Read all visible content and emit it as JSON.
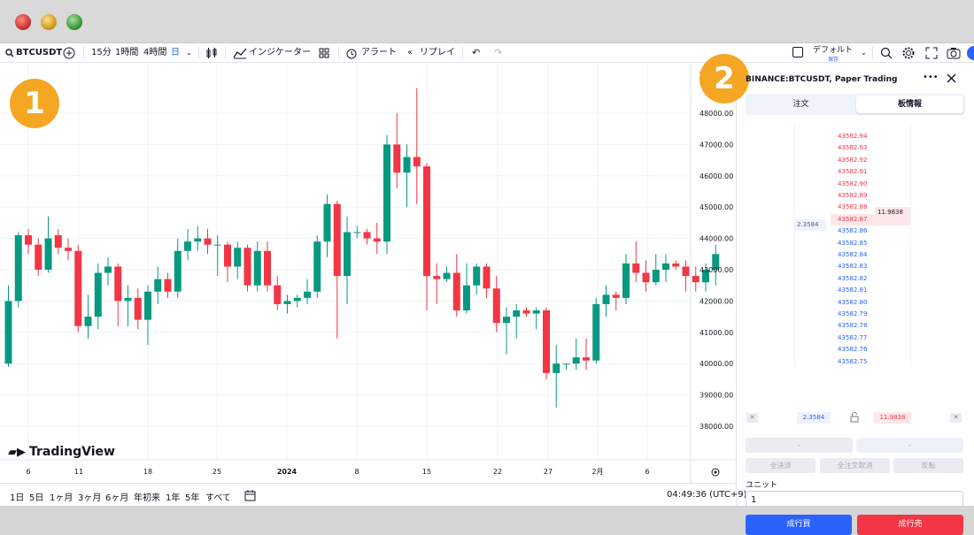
{
  "badges": {
    "one": "1",
    "two": "2"
  },
  "toolbar": {
    "symbol": "BTCUSDT",
    "intervals": [
      "15分",
      "1時間",
      "4時間",
      "日"
    ],
    "indicators": "インジケーター",
    "alert": "アラート",
    "replay": "リプレイ",
    "layout": "デフォルト",
    "layout_sub": "保存"
  },
  "chart": {
    "currency": "USDT",
    "logo": "TradingView",
    "y_ticks": [
      "48000.00",
      "47000.00",
      "46000.00",
      "45000.00",
      "44000.00",
      "43000.00",
      "42000.00",
      "41000.00",
      "40000.00",
      "39000.00",
      "38000.00"
    ],
    "x_labels": [
      "6",
      "11",
      "18",
      "25",
      "2024",
      "8",
      "15",
      "22",
      "27",
      "2月",
      "6"
    ]
  },
  "chart_data": {
    "type": "candlestick",
    "series": "BINANCE:BTCUSDT daily",
    "ylim": [
      37600,
      49800
    ],
    "y_tick_labels": [
      "48000.00",
      "47000.00",
      "46000.00",
      "45000.00",
      "44000.00",
      "43000.00",
      "42000.00",
      "41000.00",
      "40000.00",
      "39000.00",
      "38000.00"
    ],
    "x_tick_labels": [
      "6",
      "11",
      "18",
      "25",
      "2024",
      "8",
      "15",
      "22",
      "27",
      "2月",
      "6"
    ],
    "up_color": "#089981",
    "down_color": "#f23645",
    "candles": [
      [
        40000,
        42000,
        39900,
        42500
      ],
      [
        42000,
        44100,
        41800,
        44200
      ],
      [
        44100,
        43800,
        43500,
        44300
      ],
      [
        43800,
        43000,
        42800,
        44000
      ],
      [
        43000,
        44000,
        42900,
        44700
      ],
      [
        44100,
        43700,
        43500,
        44300
      ],
      [
        43700,
        43600,
        43300,
        44000
      ],
      [
        43600,
        41200,
        41000,
        43800
      ],
      [
        41200,
        41500,
        40800,
        42200
      ],
      [
        41500,
        42900,
        41100,
        43200
      ],
      [
        42900,
        43100,
        42500,
        43400
      ],
      [
        43100,
        42000,
        41200,
        43200
      ],
      [
        42000,
        42100,
        41200,
        42500
      ],
      [
        42100,
        41400,
        41100,
        42400
      ],
      [
        41400,
        42300,
        40600,
        42500
      ],
      [
        42300,
        42700,
        41900,
        43100
      ],
      [
        42700,
        42300,
        42100,
        42900
      ],
      [
        42300,
        43600,
        42100,
        44000
      ],
      [
        43600,
        43900,
        43300,
        44300
      ],
      [
        43900,
        44000,
        43600,
        44400
      ],
      [
        44000,
        43800,
        43500,
        44300
      ],
      [
        43800,
        43800,
        42800,
        44100
      ],
      [
        43800,
        43100,
        42600,
        43900
      ],
      [
        43100,
        43700,
        42700,
        43900
      ],
      [
        43700,
        42500,
        42300,
        43800
      ],
      [
        42500,
        43600,
        42300,
        43900
      ],
      [
        43600,
        42500,
        42300,
        43900
      ],
      [
        42500,
        41900,
        41700,
        42800
      ],
      [
        41900,
        42000,
        41600,
        42200
      ],
      [
        42000,
        42100,
        41800,
        42200
      ],
      [
        42100,
        42300,
        41900,
        42700
      ],
      [
        42300,
        43900,
        42100,
        44100
      ],
      [
        43900,
        45100,
        43400,
        45400
      ],
      [
        45100,
        42800,
        40800,
        45200
      ],
      [
        42800,
        44200,
        41900,
        44700
      ],
      [
        44200,
        44200,
        44000,
        44400
      ],
      [
        44200,
        44000,
        43800,
        44300
      ],
      [
        44000,
        43900,
        43500,
        44500
      ],
      [
        43900,
        47000,
        43500,
        47300
      ],
      [
        47000,
        46100,
        45600,
        48000
      ],
      [
        46100,
        46600,
        45000,
        47000
      ],
      [
        46600,
        46300,
        45100,
        48800
      ],
      [
        46300,
        42800,
        41700,
        46400
      ],
      [
        42800,
        42700,
        41900,
        43200
      ],
      [
        42700,
        42900,
        42600,
        43100
      ],
      [
        42900,
        41700,
        41500,
        43500
      ],
      [
        41700,
        42500,
        41600,
        43200
      ],
      [
        42500,
        43100,
        42200,
        43200
      ],
      [
        43100,
        42400,
        42100,
        43200
      ],
      [
        42400,
        41300,
        41000,
        42800
      ],
      [
        41300,
        41500,
        40300,
        41800
      ],
      [
        41500,
        41700,
        40800,
        41900
      ],
      [
        41700,
        41600,
        41500,
        41800
      ],
      [
        41600,
        41700,
        41100,
        41800
      ],
      [
        41700,
        39700,
        39500,
        41800
      ],
      [
        39700,
        40000,
        38600,
        40600
      ],
      [
        40000,
        40000,
        39800,
        40000
      ],
      [
        40000,
        40200,
        39800,
        40800
      ],
      [
        40200,
        40100,
        39800,
        40800
      ],
      [
        40100,
        41900,
        40000,
        42100
      ],
      [
        41900,
        42200,
        41500,
        42500
      ],
      [
        42200,
        42100,
        41700,
        42300
      ],
      [
        42100,
        43200,
        41900,
        43500
      ],
      [
        43200,
        42900,
        42600,
        43900
      ],
      [
        42900,
        42600,
        42300,
        43300
      ],
      [
        42600,
        43000,
        42500,
        43500
      ],
      [
        43000,
        43200,
        42600,
        43500
      ],
      [
        43200,
        43100,
        43000,
        43300
      ],
      [
        43100,
        42800,
        42300,
        43300
      ],
      [
        42800,
        42600,
        42300,
        43100
      ],
      [
        42600,
        43000,
        42300,
        43200
      ],
      [
        43000,
        43500,
        42500,
        43800
      ]
    ]
  },
  "bottombar": {
    "ranges": [
      "1日",
      "5日",
      "1ヶ月",
      "3ヶ月",
      "6ヶ月",
      "年初来",
      "1年",
      "5年",
      "すべて"
    ],
    "clock": "04:49:36 (UTC+9)"
  },
  "panel": {
    "title": "BINANCE:BTCUSDT, Paper Trading",
    "tabs": [
      "注文",
      "板情報"
    ],
    "asks": [
      "43582.94",
      "43582.93",
      "43582.92",
      "43582.91",
      "43582.90",
      "43582.89",
      "43582.88",
      "43582.87"
    ],
    "bids": [
      "43582.86",
      "43582.85",
      "43582.84",
      "43582.83",
      "43582.82",
      "43582.81",
      "43582.80",
      "43582.79",
      "43582.78",
      "43582.77",
      "43582.76",
      "43582.75"
    ],
    "ask_qty": "11.9838",
    "bid_qty": "2.3584",
    "buy_total": "2.3584",
    "sell_total": "11.9838",
    "dash": "–",
    "actions": [
      "全決済",
      "全注文取消",
      "反転"
    ],
    "unit_label": "ユニット",
    "unit_value": "1",
    "buy_label": "成行買",
    "sell_label": "成行売"
  }
}
